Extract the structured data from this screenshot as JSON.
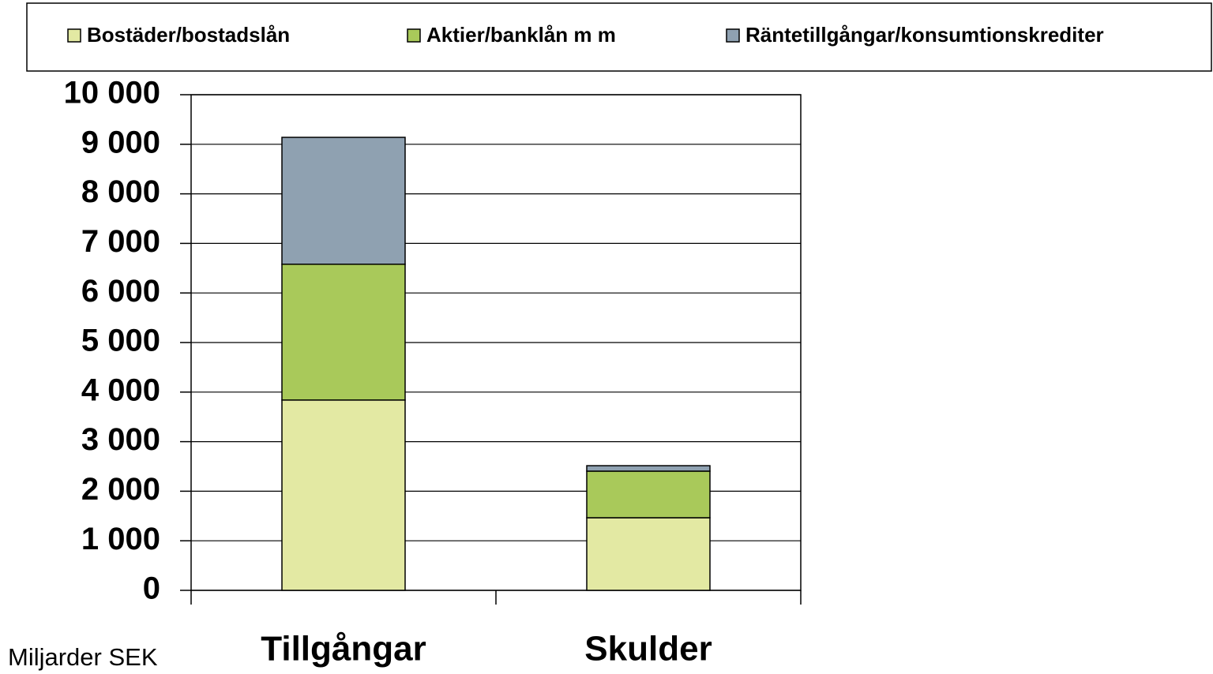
{
  "chart_data": {
    "type": "stacked_bar",
    "ylabel": "Miljarder SEK",
    "categories": [
      "Tillgångar",
      "Skulder"
    ],
    "series": [
      {
        "name": "Bostäder/bostadslån",
        "color": "#e3e9a3",
        "values": [
          3840,
          1465
        ]
      },
      {
        "name": "Aktier/banklån m m",
        "color": "#a9c95a",
        "values": [
          2740,
          940
        ]
      },
      {
        "name": "Räntetillgångar/konsumtionskrediter",
        "color": "#8fa1b1",
        "values": [
          2560,
          110
        ]
      }
    ],
    "ylim": [
      0,
      10000
    ],
    "yticks": [
      0,
      {
        "value": 1000,
        "label": "1 000"
      },
      {
        "value": 2000,
        "label": "2 000"
      },
      {
        "value": 3000,
        "label": "3 000"
      },
      {
        "value": 4000,
        "label": "4 000"
      },
      {
        "value": 5000,
        "label": "5 000"
      },
      {
        "value": 6000,
        "label": "6 000"
      },
      {
        "value": 7000,
        "label": "7 000"
      },
      {
        "value": 8000,
        "label": "8 000"
      },
      {
        "value": 9000,
        "label": "9 000"
      },
      {
        "value": 10000,
        "label": "10 000"
      }
    ],
    "grid": true,
    "legend": "top"
  }
}
